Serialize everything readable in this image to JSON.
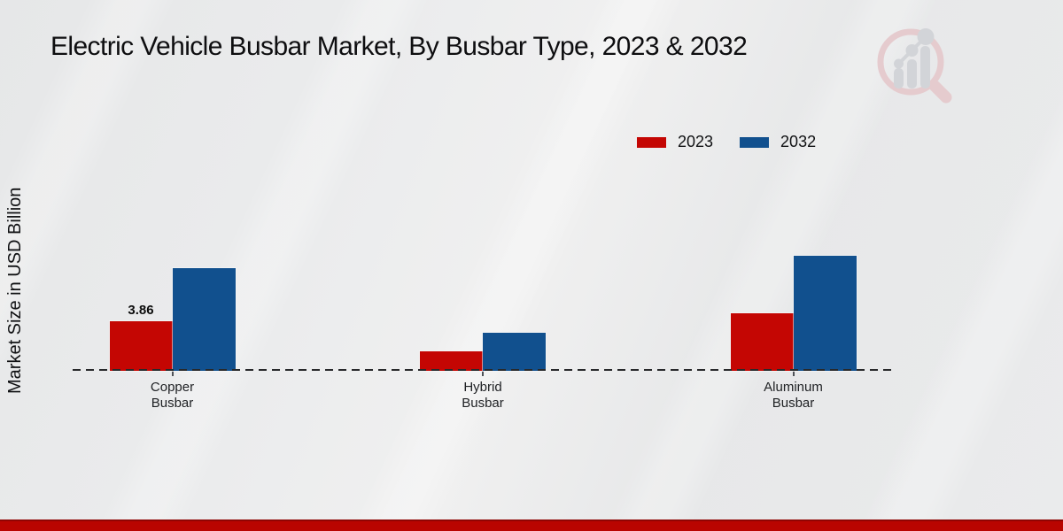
{
  "title": "Electric Vehicle Busbar Market, By Busbar Type, 2023 & 2032",
  "y_axis_label": "Market Size in USD Billion",
  "legend": [
    {
      "label": "2023",
      "color": "#c40603"
    },
    {
      "label": "2032",
      "color": "#11508e"
    }
  ],
  "chart_data": {
    "type": "bar",
    "title": "Electric Vehicle Busbar Market, By Busbar Type, 2023 & 2032",
    "categories": [
      "Copper Busbar",
      "Hybrid Busbar",
      "Aluminum Busbar"
    ],
    "series": [
      {
        "name": "2023",
        "color": "#c40603",
        "values": [
          3.86,
          1.5,
          4.5
        ]
      },
      {
        "name": "2032",
        "color": "#11508e",
        "values": [
          8.0,
          3.0,
          9.0
        ]
      }
    ],
    "annotations": [
      {
        "series_index": 0,
        "category_index": 0,
        "text": "3.86"
      }
    ],
    "xlabel": "",
    "ylabel": "Market Size in USD Billion",
    "ylim": [
      0,
      10
    ],
    "grid": false,
    "legend_position": "top-right",
    "x_axis_style": "dashed-baseline",
    "value_unit": "USD Billion"
  },
  "watermark_icon": "market-research-future-magnifier-bar-chart-logo",
  "colors": {
    "background": "#e9eaeb",
    "bottom_band": "#b90500",
    "baseline": "#28292b",
    "series_2023": "#c40603",
    "series_2032": "#11508e"
  }
}
